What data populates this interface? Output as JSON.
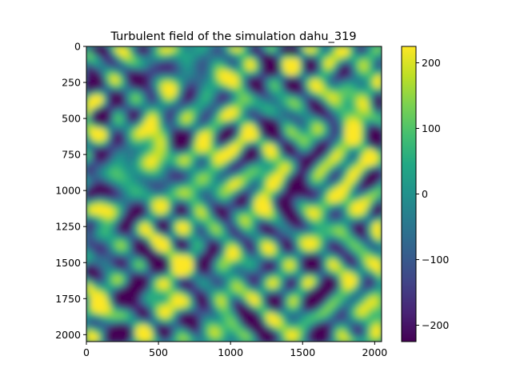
{
  "chart_data": {
    "type": "heatmap",
    "title": "Turbulent field of the simulation dahu_319",
    "xlabel": "",
    "ylabel": "",
    "x_range": [
      0,
      2048
    ],
    "y_range": [
      0,
      2048
    ],
    "y_inverted": true,
    "x_ticks": [
      0,
      500,
      1000,
      1500,
      2000
    ],
    "y_ticks": [
      0,
      250,
      500,
      750,
      1000,
      1250,
      1500,
      1750,
      2000
    ],
    "colormap": "viridis",
    "color_range": [
      -225,
      225
    ],
    "colorbar_ticks": [
      200,
      100,
      0,
      -100,
      -200
    ],
    "colorbar_tick_labels": [
      "200",
      "100",
      "0",
      "−100",
      "−200"
    ],
    "grid": false,
    "features": [
      {
        "x": 60,
        "y": 130,
        "value": -220
      },
      {
        "x": 90,
        "y": 680,
        "value": 210
      },
      {
        "x": 60,
        "y": 1180,
        "value": 200
      },
      {
        "x": 110,
        "y": 1780,
        "value": 190
      },
      {
        "x": 90,
        "y": 1480,
        "value": -210
      },
      {
        "x": 300,
        "y": 320,
        "value": -200
      },
      {
        "x": 460,
        "y": 180,
        "value": -210
      },
      {
        "x": 530,
        "y": 780,
        "value": 210
      },
      {
        "x": 880,
        "y": 730,
        "value": 200
      },
      {
        "x": 1000,
        "y": 940,
        "value": 160
      },
      {
        "x": 1250,
        "y": 840,
        "value": 170
      },
      {
        "x": 1590,
        "y": 1720,
        "value": -220
      },
      {
        "x": 340,
        "y": 1600,
        "value": -210
      },
      {
        "x": 1150,
        "y": 1920,
        "value": -200
      },
      {
        "x": 1800,
        "y": 1150,
        "value": 140
      },
      {
        "x": 1480,
        "y": 1330,
        "value": 150
      },
      {
        "x": 1950,
        "y": 1350,
        "value": -150
      },
      {
        "x": 1170,
        "y": 1260,
        "value": -180
      },
      {
        "x": 760,
        "y": 1900,
        "value": -190
      },
      {
        "x": 220,
        "y": 580,
        "value": 170
      }
    ]
  }
}
